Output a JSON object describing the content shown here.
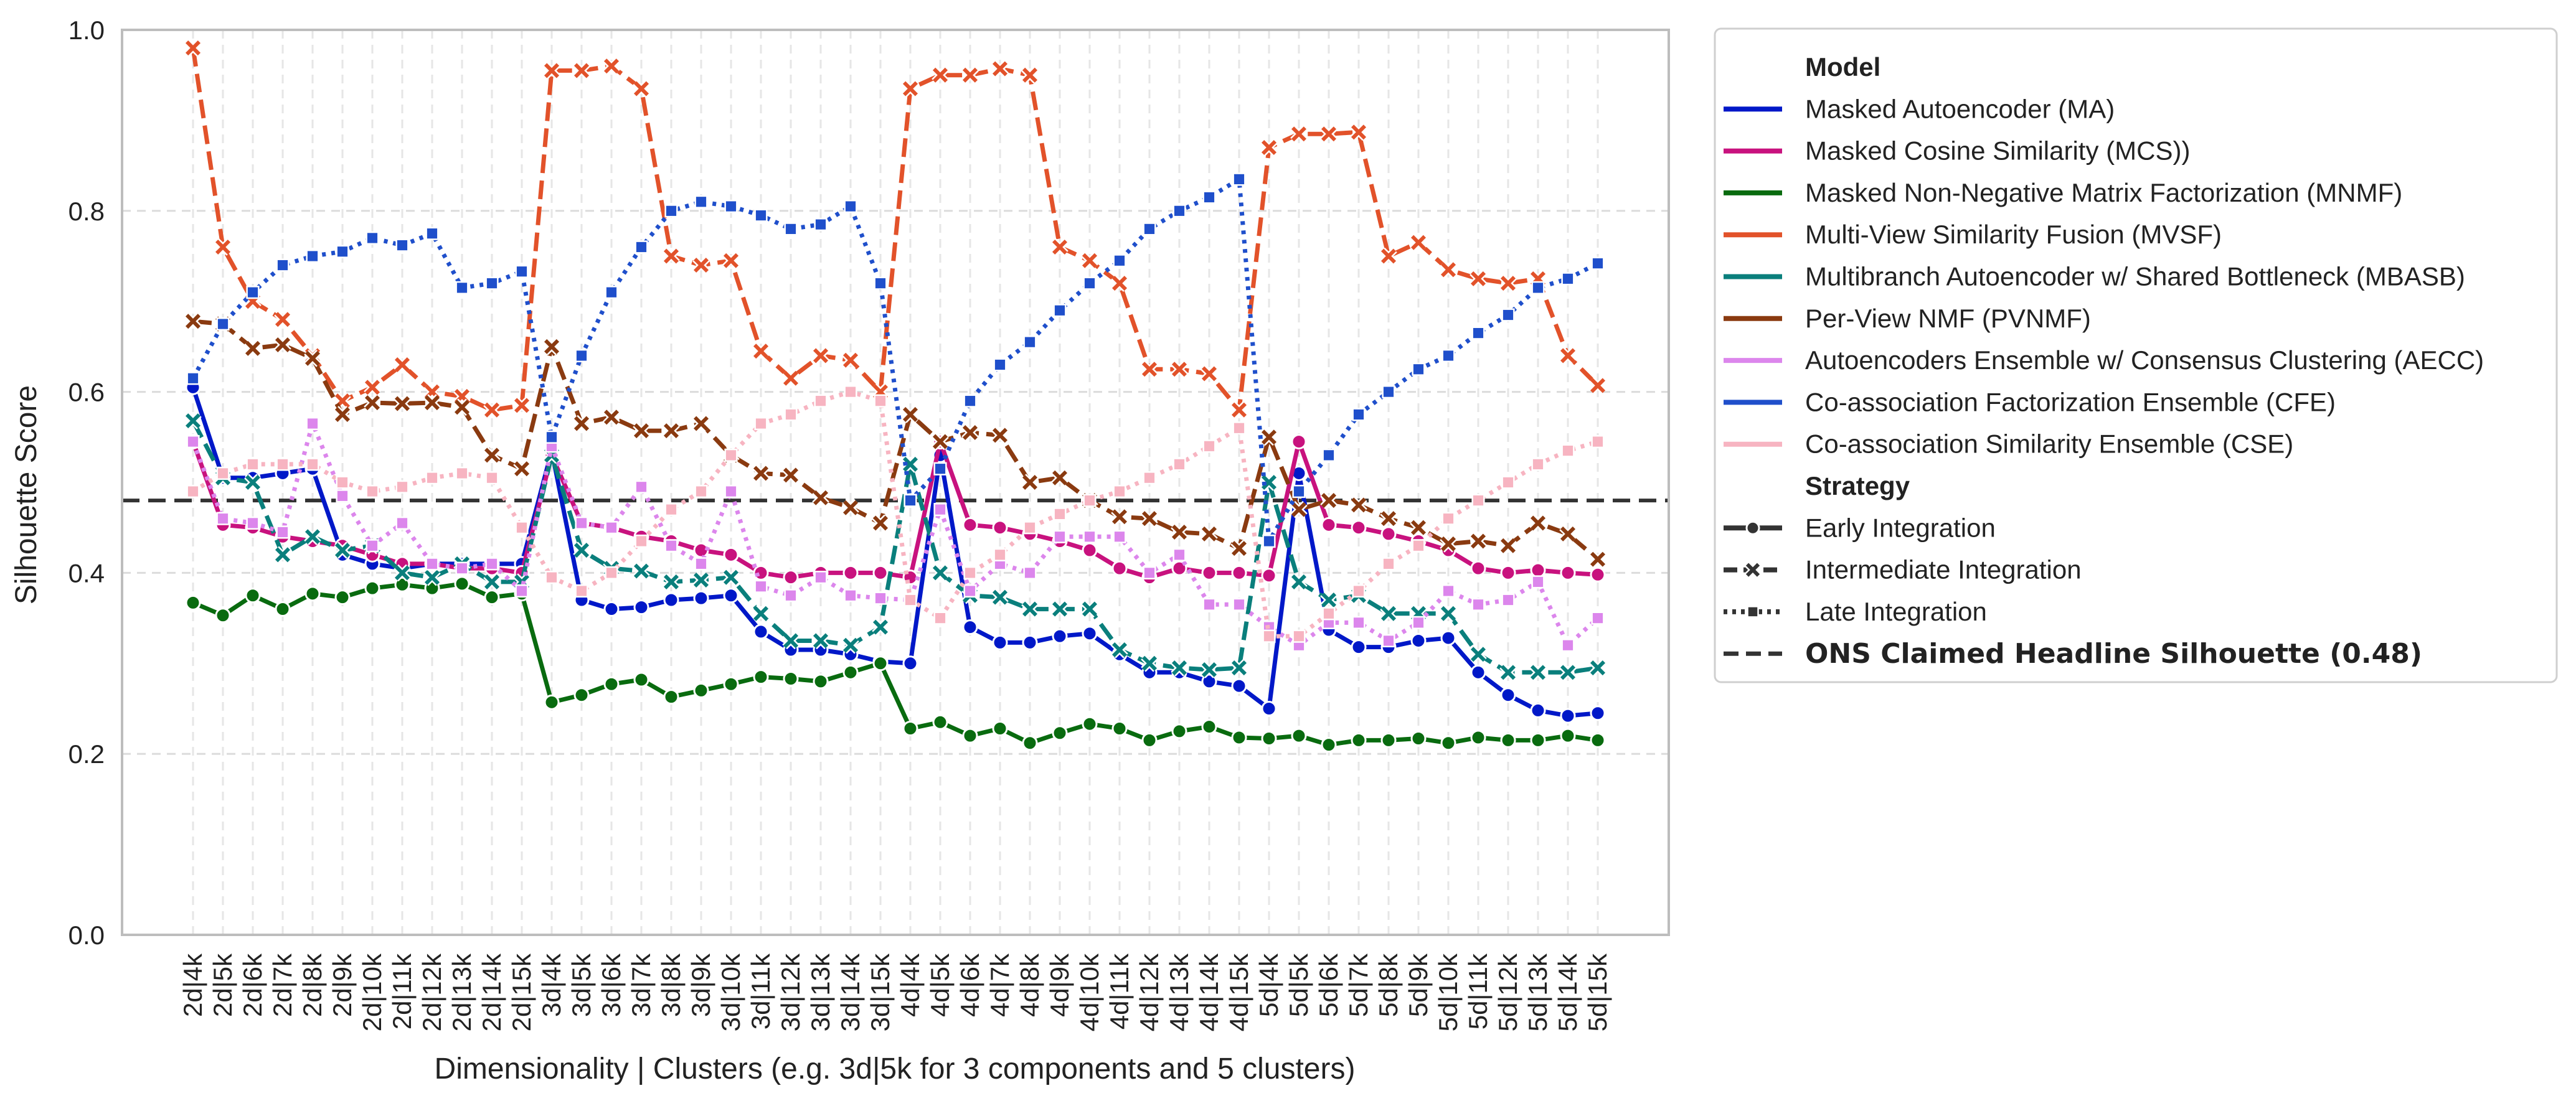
{
  "chart_data": {
    "type": "line",
    "title": "",
    "xlabel": "Dimensionality | Clusters (e.g. 3d|5k for 3 components and 5 clusters)",
    "ylabel": "Silhouette Score",
    "ylim": [
      0.0,
      1.0
    ],
    "yticks": [
      "0.0",
      "0.2",
      "0.4",
      "0.6",
      "0.8",
      "1.0"
    ],
    "grid": true,
    "legend_position": "outside-right",
    "categories": [
      "2d|4k",
      "2d|5k",
      "2d|6k",
      "2d|7k",
      "2d|8k",
      "2d|9k",
      "2d|10k",
      "2d|11k",
      "2d|12k",
      "2d|13k",
      "2d|14k",
      "2d|15k",
      "3d|4k",
      "3d|5k",
      "3d|6k",
      "3d|7k",
      "3d|8k",
      "3d|9k",
      "3d|10k",
      "3d|11k",
      "3d|12k",
      "3d|13k",
      "3d|14k",
      "3d|15k",
      "4d|4k",
      "4d|5k",
      "4d|6k",
      "4d|7k",
      "4d|8k",
      "4d|9k",
      "4d|10k",
      "4d|11k",
      "4d|12k",
      "4d|13k",
      "4d|14k",
      "4d|15k",
      "5d|4k",
      "5d|5k",
      "5d|6k",
      "5d|7k",
      "5d|8k",
      "5d|9k",
      "5d|10k",
      "5d|11k",
      "5d|12k",
      "5d|13k",
      "5d|14k",
      "5d|15k"
    ],
    "legend_model_header": "Model",
    "legend_strategy_header": "Strategy",
    "series": [
      {
        "name": "Masked Autoencoder (MA)",
        "color": "#0018c8",
        "strategy": "early",
        "values": [
          0.605,
          0.505,
          0.505,
          0.51,
          0.515,
          0.42,
          0.41,
          0.405,
          0.41,
          0.41,
          0.41,
          0.41,
          0.535,
          0.37,
          0.36,
          0.362,
          0.37,
          0.372,
          0.375,
          0.335,
          0.315,
          0.315,
          0.31,
          0.302,
          0.3,
          0.53,
          0.34,
          0.323,
          0.323,
          0.33,
          0.333,
          0.31,
          0.29,
          0.29,
          0.28,
          0.275,
          0.25,
          0.51,
          0.337,
          0.318,
          0.318,
          0.325,
          0.328,
          0.29,
          0.265,
          0.248,
          0.242,
          0.245
        ]
      },
      {
        "name": "Masked Cosine Similarity (MCS))",
        "color": "#c8127e",
        "strategy": "early",
        "values": [
          0.545,
          0.453,
          0.45,
          0.44,
          0.435,
          0.43,
          0.42,
          0.41,
          0.41,
          0.405,
          0.405,
          0.4,
          0.53,
          0.455,
          0.45,
          0.44,
          0.435,
          0.425,
          0.42,
          0.4,
          0.395,
          0.4,
          0.4,
          0.4,
          0.395,
          0.545,
          0.453,
          0.45,
          0.443,
          0.435,
          0.425,
          0.405,
          0.395,
          0.405,
          0.4,
          0.4,
          0.397,
          0.545,
          0.453,
          0.45,
          0.443,
          0.435,
          0.425,
          0.405,
          0.4,
          0.403,
          0.4,
          0.398
        ]
      },
      {
        "name": "Masked Non-Negative Matrix Factorization (MNMF)",
        "color": "#096b0f",
        "strategy": "early",
        "values": [
          0.367,
          0.353,
          0.375,
          0.36,
          0.377,
          0.373,
          0.383,
          0.387,
          0.383,
          0.388,
          0.373,
          0.377,
          0.257,
          0.265,
          0.277,
          0.282,
          0.263,
          0.27,
          0.277,
          0.285,
          0.283,
          0.28,
          0.29,
          0.3,
          0.228,
          0.235,
          0.22,
          0.228,
          0.212,
          0.223,
          0.233,
          0.228,
          0.215,
          0.225,
          0.23,
          0.218,
          0.217,
          0.22,
          0.21,
          0.215,
          0.215,
          0.217,
          0.212,
          0.218,
          0.215,
          0.215,
          0.22,
          0.215
        ]
      },
      {
        "name": "Multi-View Similarity Fusion (MVSF)",
        "color": "#e2522a",
        "strategy": "intermediate",
        "values": [
          0.98,
          0.76,
          0.7,
          0.68,
          0.64,
          0.59,
          0.605,
          0.63,
          0.6,
          0.595,
          0.58,
          0.585,
          0.955,
          0.955,
          0.96,
          0.935,
          0.75,
          0.74,
          0.745,
          0.645,
          0.615,
          0.64,
          0.635,
          0.6,
          0.935,
          0.95,
          0.95,
          0.957,
          0.95,
          0.76,
          0.745,
          0.72,
          0.625,
          0.625,
          0.62,
          0.58,
          0.87,
          0.885,
          0.885,
          0.887,
          0.75,
          0.765,
          0.735,
          0.725,
          0.72,
          0.725,
          0.64,
          0.607
        ]
      },
      {
        "name": "Multibranch Autoencoder w/ Shared Bottleneck (MBASB)",
        "color": "#0a7f7c",
        "strategy": "intermediate",
        "values": [
          0.568,
          0.505,
          0.5,
          0.42,
          0.44,
          0.425,
          0.43,
          0.4,
          0.395,
          0.41,
          0.39,
          0.39,
          0.53,
          0.425,
          0.405,
          0.402,
          0.39,
          0.392,
          0.395,
          0.355,
          0.325,
          0.325,
          0.32,
          0.34,
          0.52,
          0.4,
          0.375,
          0.373,
          0.36,
          0.36,
          0.36,
          0.315,
          0.3,
          0.295,
          0.293,
          0.295,
          0.5,
          0.39,
          0.37,
          0.375,
          0.355,
          0.355,
          0.355,
          0.31,
          0.29,
          0.29,
          0.29,
          0.295
        ]
      },
      {
        "name": "Per-View NMF (PVNMF)",
        "color": "#8a3a10",
        "strategy": "intermediate",
        "values": [
          0.678,
          0.675,
          0.648,
          0.652,
          0.637,
          0.575,
          0.588,
          0.587,
          0.588,
          0.583,
          0.53,
          0.515,
          0.65,
          0.565,
          0.572,
          0.557,
          0.557,
          0.565,
          0.53,
          0.51,
          0.508,
          0.483,
          0.472,
          0.455,
          0.575,
          0.545,
          0.555,
          0.552,
          0.5,
          0.505,
          0.48,
          0.462,
          0.46,
          0.445,
          0.443,
          0.427,
          0.55,
          0.47,
          0.48,
          0.475,
          0.46,
          0.45,
          0.432,
          0.435,
          0.43,
          0.455,
          0.443,
          0.415
        ]
      },
      {
        "name": "Autoencoders Ensemble w/ Consensus Clustering (AECC)",
        "color": "#dc86ec",
        "strategy": "late",
        "values": [
          0.545,
          0.46,
          0.455,
          0.445,
          0.565,
          0.485,
          0.43,
          0.455,
          0.41,
          0.405,
          0.41,
          0.38,
          0.54,
          0.455,
          0.45,
          0.495,
          0.43,
          0.41,
          0.49,
          0.385,
          0.375,
          0.395,
          0.375,
          0.372,
          0.37,
          0.47,
          0.38,
          0.41,
          0.4,
          0.44,
          0.44,
          0.44,
          0.4,
          0.42,
          0.365,
          0.365,
          0.34,
          0.32,
          0.345,
          0.345,
          0.325,
          0.345,
          0.38,
          0.365,
          0.37,
          0.39,
          0.32,
          0.35
        ]
      },
      {
        "name": "Co-association Factorization Ensemble (CFE)",
        "color": "#1f4fcb",
        "strategy": "late",
        "values": [
          0.615,
          0.675,
          0.71,
          0.74,
          0.75,
          0.755,
          0.77,
          0.762,
          0.775,
          0.715,
          0.72,
          0.733,
          0.55,
          0.64,
          0.71,
          0.76,
          0.8,
          0.81,
          0.805,
          0.795,
          0.78,
          0.785,
          0.805,
          0.72,
          0.48,
          0.515,
          0.59,
          0.63,
          0.655,
          0.69,
          0.72,
          0.745,
          0.78,
          0.8,
          0.815,
          0.835,
          0.435,
          0.49,
          0.53,
          0.575,
          0.6,
          0.625,
          0.64,
          0.665,
          0.685,
          0.715,
          0.725,
          0.742
        ]
      },
      {
        "name": "Co-association Similarity Ensemble (CSE)",
        "color": "#f7b4c1",
        "strategy": "late",
        "values": [
          0.49,
          0.51,
          0.52,
          0.52,
          0.52,
          0.5,
          0.49,
          0.495,
          0.505,
          0.51,
          0.505,
          0.45,
          0.395,
          0.38,
          0.4,
          0.435,
          0.47,
          0.49,
          0.53,
          0.565,
          0.575,
          0.59,
          0.6,
          0.59,
          0.37,
          0.35,
          0.4,
          0.42,
          0.45,
          0.465,
          0.48,
          0.49,
          0.505,
          0.52,
          0.54,
          0.56,
          0.33,
          0.33,
          0.355,
          0.38,
          0.41,
          0.43,
          0.46,
          0.48,
          0.5,
          0.52,
          0.535,
          0.545
        ]
      }
    ],
    "strategies": [
      {
        "key": "early",
        "label": "Early Integration",
        "dash": "",
        "marker": "circle"
      },
      {
        "key": "intermediate",
        "label": "Intermediate Integration",
        "dash": "30 12",
        "marker": "x"
      },
      {
        "key": "late",
        "label": "Late Integration",
        "dash": "6 9",
        "marker": "square"
      }
    ],
    "reference_line": {
      "label": "ONS Claimed Headline Silhouette (0.48)",
      "value": 0.48,
      "color": "#333333"
    }
  }
}
